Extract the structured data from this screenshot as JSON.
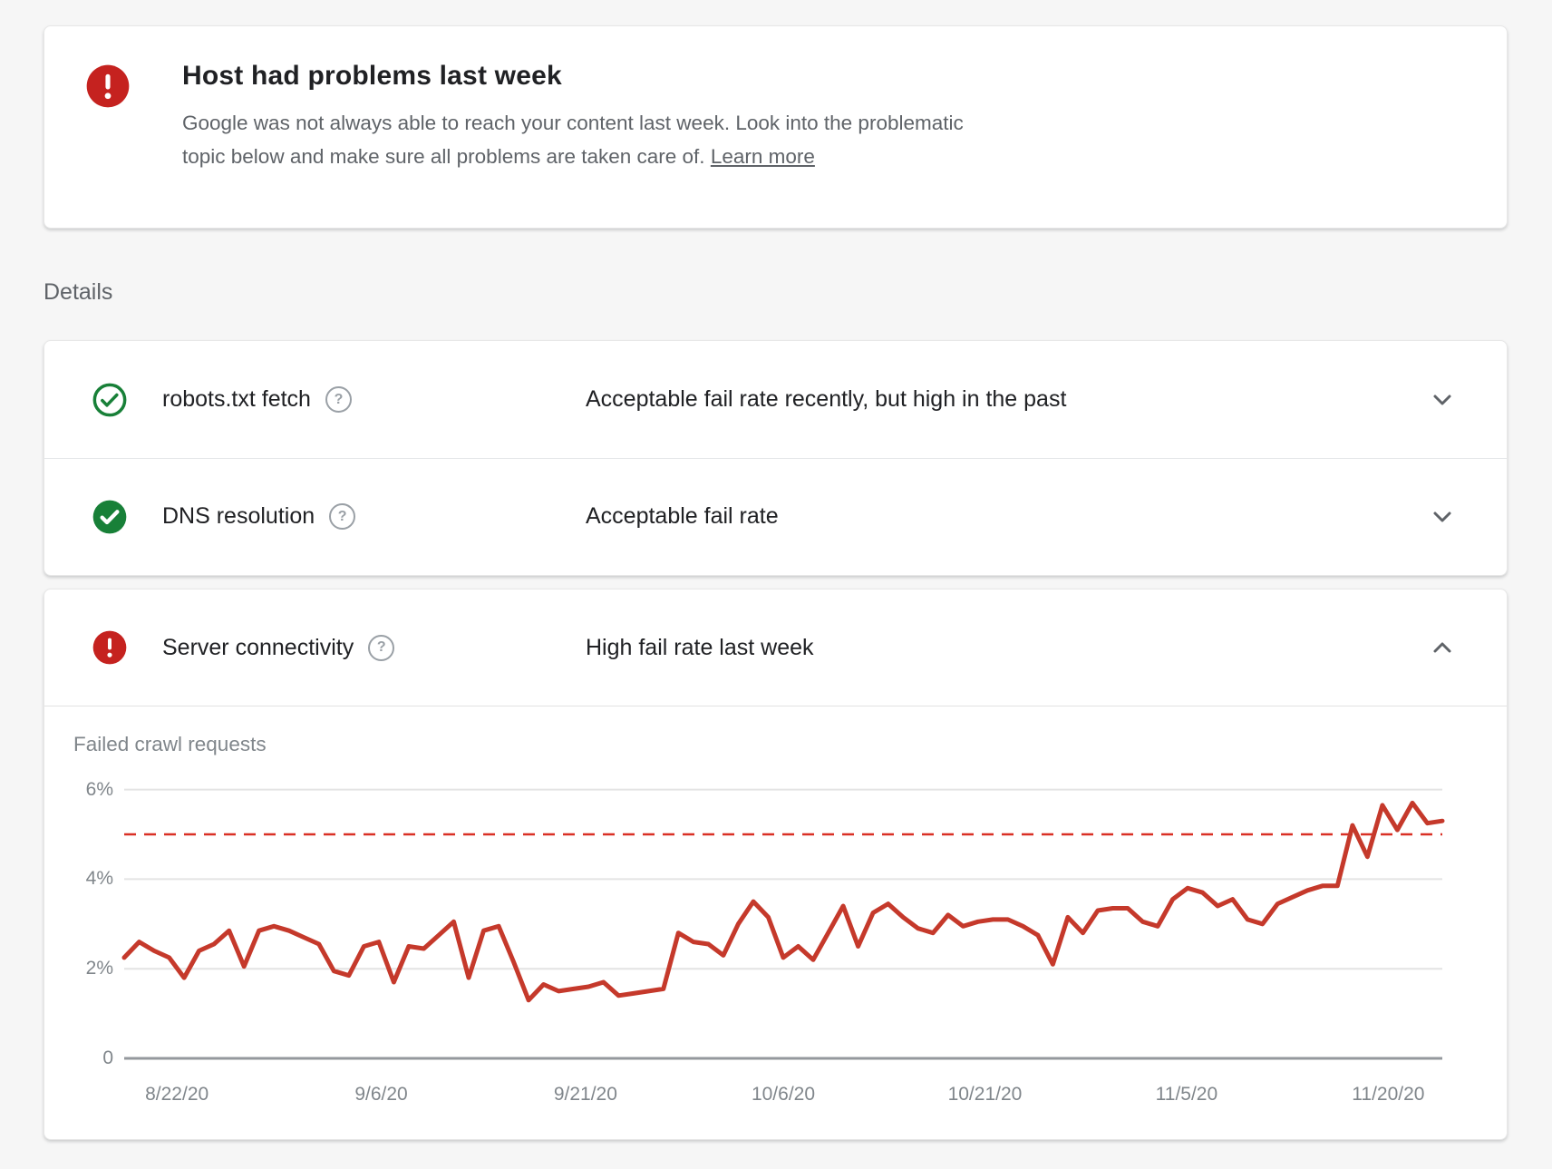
{
  "banner": {
    "title": "Host had problems last week",
    "description_line1": "Google was not always able to reach your content last week. Look into the problematic",
    "description_line2": "topic below and make sure all problems are taken care of.",
    "learn_more": "Learn more"
  },
  "details_heading": "Details",
  "rows": {
    "robots": {
      "label": "robots.txt fetch",
      "status": "Acceptable fail rate recently, but high in the past",
      "state": "ok-outline",
      "expanded": false
    },
    "dns": {
      "label": "DNS resolution",
      "status": "Acceptable fail rate",
      "state": "ok-filled",
      "expanded": false
    },
    "server": {
      "label": "Server connectivity",
      "status": "High fail rate last week",
      "state": "error",
      "expanded": true
    }
  },
  "help_symbol": "?",
  "chart_data": {
    "type": "line",
    "title": "Failed crawl requests",
    "grid": true,
    "legend": false,
    "ylim": [
      0,
      6.6
    ],
    "y_tick_labels": [
      "6%",
      "4%",
      "2%",
      "0"
    ],
    "y_tick_values": [
      6,
      4,
      2,
      0
    ],
    "x_ticks": [
      "8/22/20",
      "9/6/20",
      "9/21/20",
      "10/6/20",
      "10/21/20",
      "11/5/20",
      "11/20/20"
    ],
    "threshold_value": 5,
    "series": [
      {
        "name": "Failed crawl requests",
        "values": [
          2.25,
          2.6,
          2.4,
          2.25,
          1.8,
          2.4,
          2.55,
          2.85,
          2.05,
          2.85,
          2.95,
          2.85,
          2.7,
          2.55,
          1.95,
          1.85,
          2.5,
          2.6,
          1.7,
          2.5,
          2.45,
          2.75,
          3.05,
          1.8,
          2.85,
          2.95,
          2.15,
          1.3,
          1.65,
          1.5,
          1.55,
          1.6,
          1.7,
          1.4,
          1.45,
          1.5,
          1.55,
          2.8,
          2.6,
          2.55,
          2.3,
          3.0,
          3.5,
          3.15,
          2.25,
          2.5,
          2.2,
          2.8,
          3.4,
          2.5,
          3.25,
          3.45,
          3.15,
          2.9,
          2.8,
          3.2,
          2.95,
          3.05,
          3.1,
          3.1,
          2.95,
          2.75,
          2.1,
          3.15,
          2.8,
          3.3,
          3.35,
          3.35,
          3.05,
          2.95,
          3.55,
          3.8,
          3.7,
          3.4,
          3.55,
          3.1,
          3.0,
          3.45,
          3.6,
          3.75,
          3.85,
          3.85,
          5.2,
          4.5,
          5.65,
          5.1,
          5.7,
          5.25,
          5.3
        ]
      }
    ],
    "colors": {
      "line": "#c5392b",
      "threshold": "#d93025",
      "grid": "#e4e4e4",
      "axis": "#94989d",
      "ok_green": "#188038",
      "error_red": "#c5221f"
    }
  }
}
